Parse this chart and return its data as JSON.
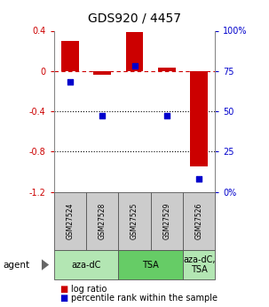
{
  "title": "GDS920 / 4457",
  "samples": [
    "GSM27524",
    "GSM27528",
    "GSM27525",
    "GSM27529",
    "GSM27526"
  ],
  "log_ratios": [
    0.3,
    -0.04,
    0.39,
    0.03,
    -0.95
  ],
  "percentile_ranks": [
    68,
    47,
    78,
    47,
    8
  ],
  "ylim_left": [
    -1.2,
    0.4
  ],
  "ylim_right": [
    0,
    100
  ],
  "bar_color": "#cc0000",
  "dot_color": "#0000cc",
  "group_defs": [
    [
      0,
      1,
      "aza-dC",
      "#b3e6b3"
    ],
    [
      2,
      3,
      "TSA",
      "#66cc66"
    ],
    [
      4,
      4,
      "aza-dC,\nTSA",
      "#b3e6b3"
    ]
  ],
  "agent_label": "agent",
  "legend_log": "log ratio",
  "legend_pct": "percentile rank within the sample",
  "hline_color": "#cc0000",
  "dotted_line_color": "#000000",
  "background_color": "#ffffff",
  "tick_color_left": "#cc0000",
  "tick_color_right": "#0000cc",
  "sample_box_color": "#cccccc",
  "bar_width": 0.55
}
